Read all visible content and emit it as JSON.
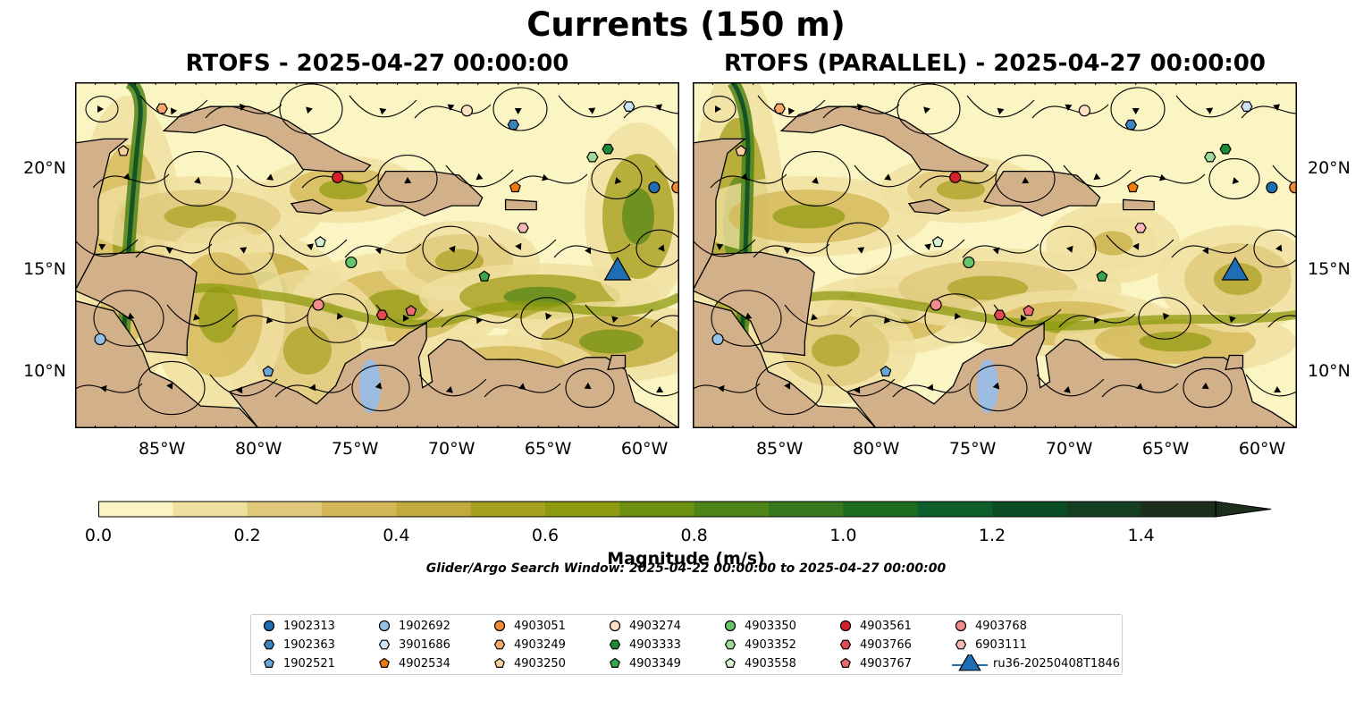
{
  "title": "Currents (150 m)",
  "subtitle": "Glider/Argo Search Window: 2025-04-22 00:00:00 to 2025-04-27 00:00:00",
  "chart_data": [
    {
      "type": "heatmap",
      "title": "RTOFS - 2025-04-27 00:00:00",
      "x_ticks": [
        "85°W",
        "80°W",
        "75°W",
        "70°W",
        "65°W",
        "60°W"
      ],
      "y_ticks": [
        "20°N",
        "15°N",
        "10°N"
      ],
      "xlim": [
        -89.5,
        -58.2
      ],
      "ylim": [
        7.2,
        24.3
      ],
      "overlay": "streamlines"
    },
    {
      "type": "heatmap",
      "title": "RTOFS (PARALLEL) - 2025-04-27 00:00:00",
      "x_ticks": [
        "85°W",
        "80°W",
        "75°W",
        "70°W",
        "65°W",
        "60°W"
      ],
      "y_ticks": [
        "20°N",
        "15°N",
        "10°N"
      ],
      "xlim": [
        -89.5,
        -58.2
      ],
      "ylim": [
        7.2,
        24.3
      ],
      "overlay": "streamlines"
    }
  ],
  "colorbar": {
    "label": "Magnitude (m/s)",
    "ticks": [
      "0.0",
      "0.2",
      "0.4",
      "0.6",
      "0.8",
      "1.0",
      "1.2",
      "1.4"
    ],
    "range": [
      0,
      1.5
    ],
    "extend": "max",
    "colors": [
      "#fbf5c3",
      "#f0e0a0",
      "#e0c87a",
      "#d4b858",
      "#c2aa3c",
      "#a8a020",
      "#8e9a10",
      "#6e9010",
      "#4f8418",
      "#357a1e",
      "#1e6c20",
      "#0c5e2a",
      "#0b4e26",
      "#153e22",
      "#1c2f1c"
    ]
  },
  "floats": [
    {
      "id": "1902313",
      "marker": "circle",
      "color": "#1f6db3",
      "lon": -59.5,
      "lat": 19.1
    },
    {
      "id": "1902363",
      "marker": "hexagon",
      "color": "#3c84bd",
      "lon": -66.8,
      "lat": 22.2
    },
    {
      "id": "1902521",
      "marker": "pentagon",
      "color": "#6aa7d7",
      "lon": -79.5,
      "lat": 10.0
    },
    {
      "id": "1902692",
      "marker": "circle",
      "color": "#92c2e6",
      "lon": -88.2,
      "lat": 11.6
    },
    {
      "id": "3901686",
      "marker": "hexagon",
      "color": "#cbe3f5",
      "lon": -60.8,
      "lat": 23.1
    },
    {
      "id": "4902534",
      "marker": "pentagon",
      "color": "#f07a10",
      "lon": -66.7,
      "lat": 19.1
    },
    {
      "id": "4903051",
      "marker": "circle",
      "color": "#f28b33",
      "lon": -58.3,
      "lat": 19.1
    },
    {
      "id": "4903249",
      "marker": "hexagon",
      "color": "#f6a96a",
      "lon": -85.0,
      "lat": 23.0
    },
    {
      "id": "4903250",
      "marker": "pentagon",
      "color": "#fbcf9c",
      "lon": -87.0,
      "lat": 20.9
    },
    {
      "id": "4903274",
      "marker": "circle",
      "color": "#fde2c6",
      "lon": -69.2,
      "lat": 22.9
    },
    {
      "id": "4903333",
      "marker": "hexagon",
      "color": "#1d8a3a",
      "lon": -61.9,
      "lat": 21.0
    },
    {
      "id": "4903349",
      "marker": "pentagon",
      "color": "#3aa54d",
      "lon": -68.3,
      "lat": 14.7
    },
    {
      "id": "4903350",
      "marker": "circle",
      "color": "#66c46b",
      "lon": -75.2,
      "lat": 15.4
    },
    {
      "id": "4903352",
      "marker": "hexagon",
      "color": "#9ed99a",
      "lon": -62.7,
      "lat": 20.6
    },
    {
      "id": "4903558",
      "marker": "pentagon",
      "color": "#d5f3cf",
      "lon": -76.8,
      "lat": 16.4
    },
    {
      "id": "4903561",
      "marker": "circle",
      "color": "#d3202a",
      "lon": -75.9,
      "lat": 19.6
    },
    {
      "id": "4903766",
      "marker": "hexagon",
      "color": "#e04a50",
      "lon": -73.6,
      "lat": 12.8
    },
    {
      "id": "4903767",
      "marker": "pentagon",
      "color": "#ec6a70",
      "lon": -72.1,
      "lat": 13.0
    },
    {
      "id": "4903768",
      "marker": "circle",
      "color": "#f28a8e",
      "lon": -76.9,
      "lat": 13.3
    },
    {
      "id": "6903111",
      "marker": "hexagon",
      "color": "#f7b7bb",
      "lon": -66.3,
      "lat": 17.1
    },
    {
      "id": "ru36-20250408T1846",
      "marker": "triangle",
      "color": "#1f6db3",
      "lon": -61.4,
      "lat": 14.9
    }
  ]
}
